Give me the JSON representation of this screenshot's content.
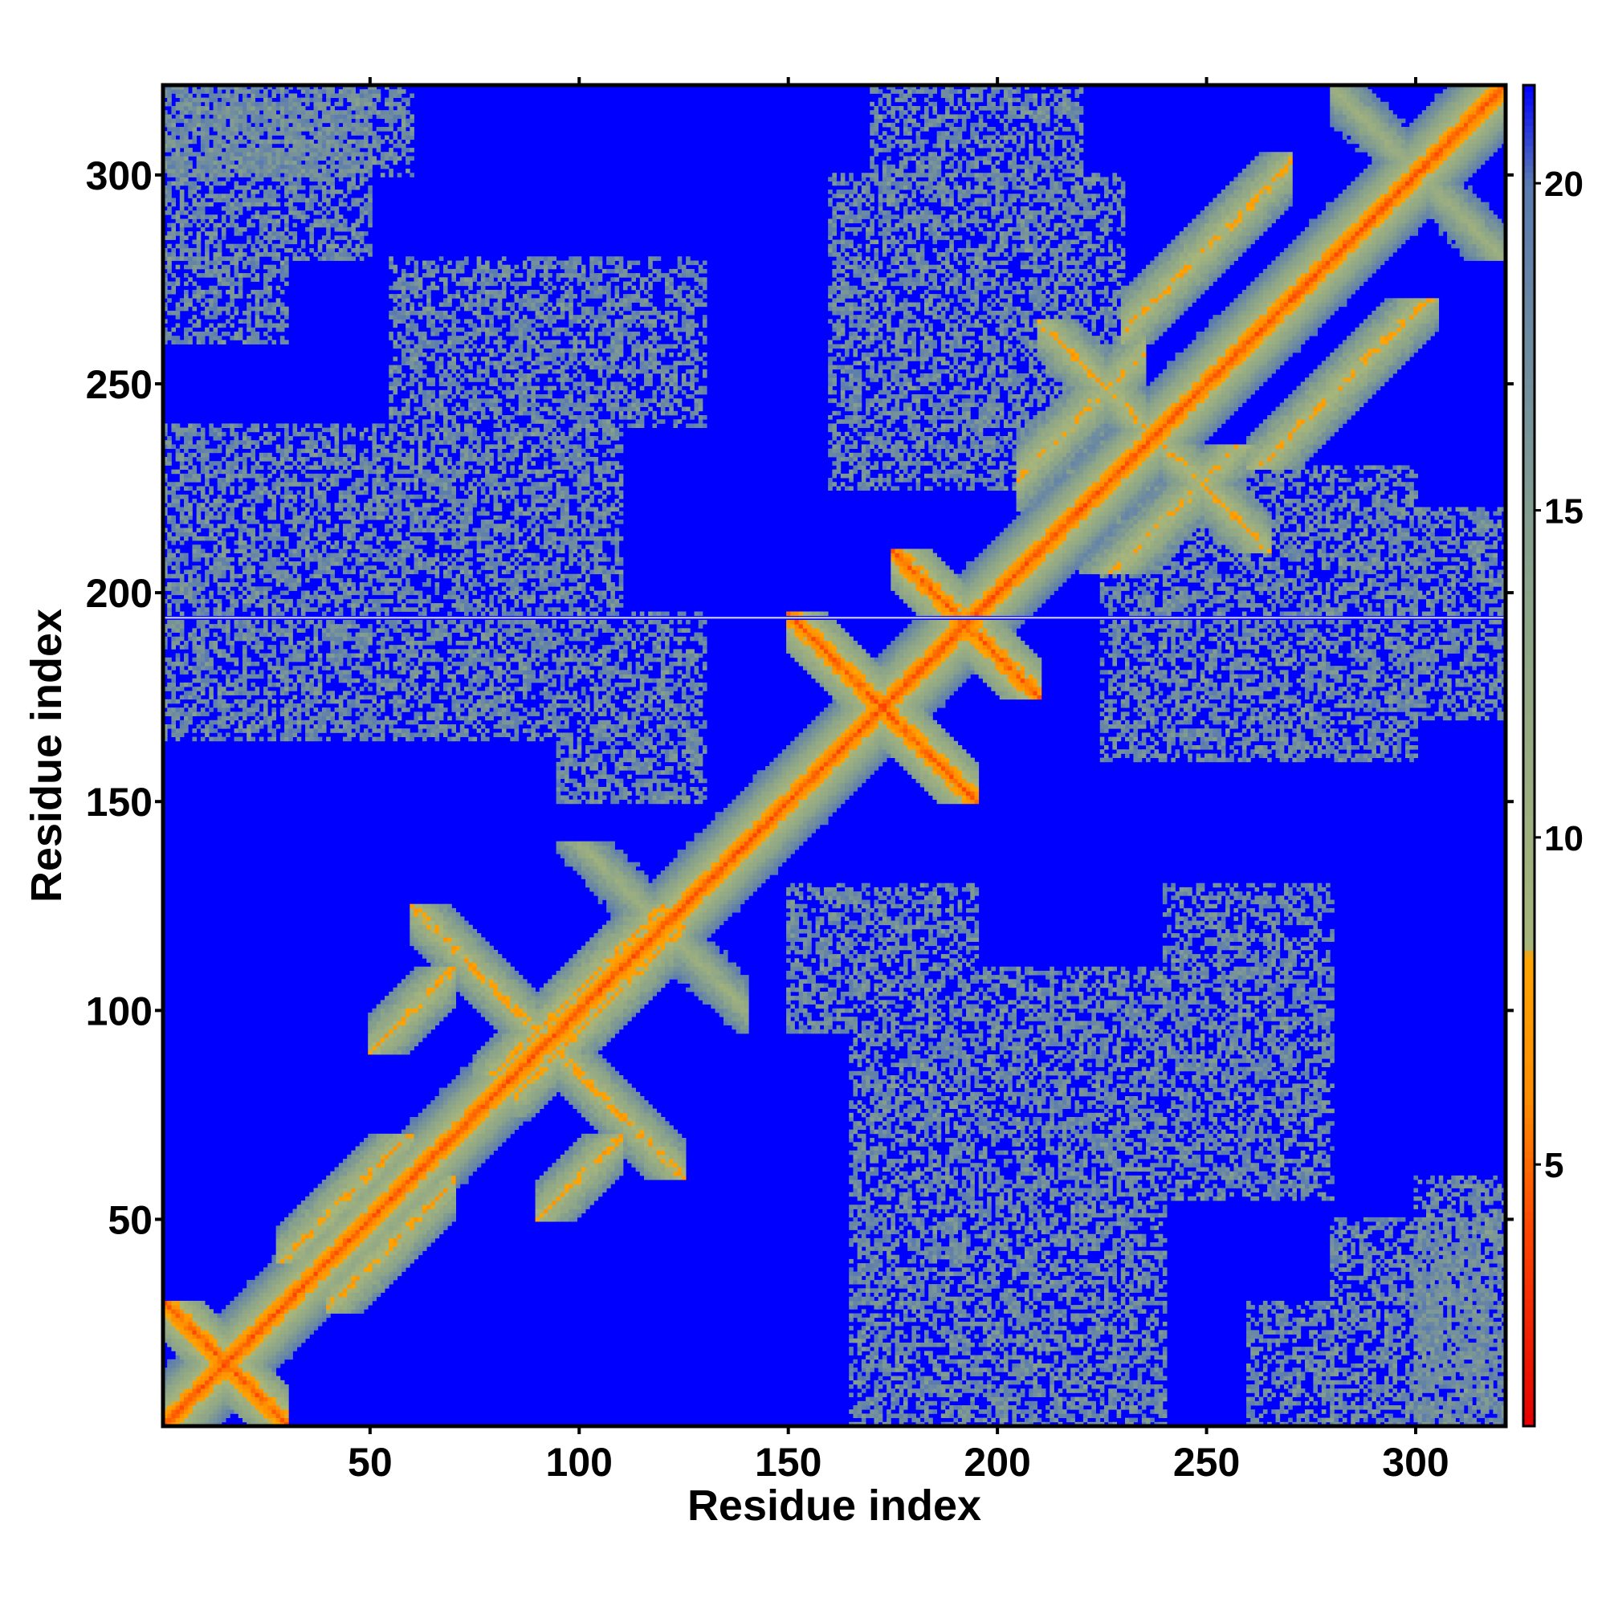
{
  "chart_data": {
    "type": "heatmap",
    "title": "",
    "xlabel": "Residue index",
    "ylabel": "Residue index",
    "xlim": [
      1,
      321
    ],
    "ylim": [
      1,
      321
    ],
    "x_ticks": [
      50,
      100,
      150,
      200,
      250,
      300
    ],
    "y_ticks": [
      50,
      100,
      150,
      200,
      250,
      300
    ],
    "x_tick_labels": [
      "50",
      "100",
      "150",
      "200",
      "250",
      "300"
    ],
    "y_tick_labels": [
      "50",
      "100",
      "150",
      "200",
      "250",
      "300"
    ],
    "colorbar": {
      "range": [
        1,
        21.5
      ],
      "ticks": [
        5,
        10,
        15,
        20
      ],
      "tick_labels": [
        "5",
        "10",
        "15",
        "20"
      ],
      "stops": [
        {
          "value": 1,
          "color": "#e60000"
        },
        {
          "value": 4,
          "color": "#ff4500"
        },
        {
          "value": 6,
          "color": "#ff8c00"
        },
        {
          "value": 8.2,
          "color": "#ffa500"
        },
        {
          "value": 8.3,
          "color": "#a8b67a"
        },
        {
          "value": 14,
          "color": "#8aa38a"
        },
        {
          "value": 20,
          "color": "#5a7bb0"
        },
        {
          "value": 21.5,
          "color": "#0000ff"
        }
      ]
    },
    "background_value": 21.5,
    "background_color": "#0000ff",
    "contact_bands": [
      {
        "i": [
          1,
          30
        ],
        "j": [
          1,
          30
        ],
        "orientation": "anti",
        "level": "strong"
      },
      {
        "i": [
          28,
          60
        ],
        "j": [
          40,
          70
        ],
        "orientation": "parallel",
        "level": "medium"
      },
      {
        "i": [
          50,
          70
        ],
        "j": [
          90,
          110
        ],
        "orientation": "parallel",
        "level": "medium"
      },
      {
        "i": [
          60,
          100
        ],
        "j": [
          85,
          125
        ],
        "orientation": "anti",
        "level": "medium"
      },
      {
        "i": [
          75,
          125
        ],
        "j": [
          85,
          125
        ],
        "orientation": "parallel",
        "level": "medium"
      },
      {
        "i": [
          95,
          135
        ],
        "j": [
          110,
          140
        ],
        "orientation": "anti",
        "level": "weak"
      },
      {
        "i": [
          150,
          195
        ],
        "j": [
          150,
          195
        ],
        "orientation": "anti",
        "level": "strong"
      },
      {
        "i": [
          175,
          210
        ],
        "j": [
          175,
          210
        ],
        "orientation": "anti",
        "level": "strong"
      },
      {
        "i": [
          205,
          235
        ],
        "j": [
          220,
          265
        ],
        "orientation": "parallel",
        "level": "medium"
      },
      {
        "i": [
          230,
          270
        ],
        "j": [
          260,
          305
        ],
        "orientation": "parallel",
        "level": "medium"
      },
      {
        "i": [
          210,
          235
        ],
        "j": [
          240,
          265
        ],
        "orientation": "anti",
        "level": "medium"
      },
      {
        "i": [
          280,
          321
        ],
        "j": [
          280,
          321
        ],
        "orientation": "anti",
        "level": "weak"
      },
      {
        "i": [
          1,
          60
        ],
        "j": [
          300,
          321
        ],
        "orientation": "block",
        "level": "weak"
      },
      {
        "i": [
          1,
          30
        ],
        "j": [
          260,
          280
        ],
        "orientation": "block",
        "level": "weak"
      },
      {
        "i": [
          1,
          110
        ],
        "j": [
          165,
          240
        ],
        "orientation": "block",
        "level": "weak"
      },
      {
        "i": [
          95,
          130
        ],
        "j": [
          150,
          195
        ],
        "orientation": "block",
        "level": "weak"
      },
      {
        "i": [
          55,
          130
        ],
        "j": [
          240,
          280
        ],
        "orientation": "block",
        "level": "weak"
      },
      {
        "i": [
          160,
          230
        ],
        "j": [
          225,
          300
        ],
        "orientation": "block",
        "level": "weak"
      },
      {
        "i": [
          160,
          200
        ],
        "j": [
          260,
          290
        ],
        "orientation": "block",
        "level": "weak"
      },
      {
        "i": [
          300,
          321
        ],
        "j": [
          170,
          220
        ],
        "orientation": "block",
        "level": "weak"
      },
      {
        "i": [
          280,
          321
        ],
        "j": [
          1,
          50
        ],
        "orientation": "block",
        "level": "weak"
      }
    ],
    "gap_row": 194
  }
}
